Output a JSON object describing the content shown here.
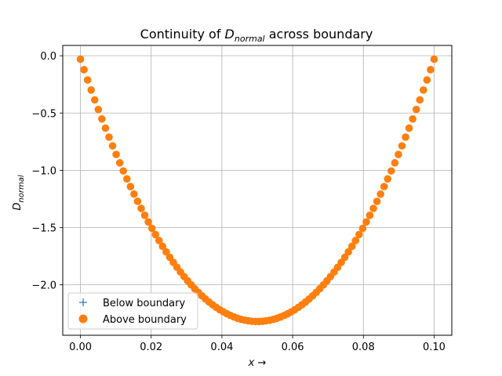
{
  "chart_data": {
    "type": "scatter",
    "title": {
      "prefix": "Continuity of ",
      "symbol": "D",
      "subscript": "normal",
      "suffix": " across boundary"
    },
    "xlabel": {
      "symbol": "x",
      "arrow": " →"
    },
    "ylabel": {
      "symbol": "D",
      "subscript": "normal"
    },
    "xlim": [
      -0.005,
      0.105
    ],
    "ylim": [
      -2.44,
      0.09
    ],
    "xticks": [
      0.0,
      0.02,
      0.04,
      0.06,
      0.08,
      0.1
    ],
    "xtick_labels": [
      "0.00",
      "0.02",
      "0.04",
      "0.06",
      "0.08",
      "0.10"
    ],
    "yticks": [
      0.0,
      -0.5,
      -1.0,
      -1.5,
      -2.0
    ],
    "ytick_labels": [
      "0.0",
      "−0.5",
      "−1.0",
      "−1.5",
      "−2.0"
    ],
    "grid": true,
    "legend_position": "lower-left",
    "curve": {
      "x_start": 0.0,
      "x_end": 0.1,
      "num_points": 100,
      "y_at_edges": -0.03,
      "y_min": -2.32,
      "x_at_min": 0.05
    },
    "series": [
      {
        "name": "Below boundary",
        "marker": "plus",
        "color": "#1f77b4"
      },
      {
        "name": "Above boundary",
        "marker": "circle",
        "color": "#ff7f0e"
      }
    ]
  }
}
